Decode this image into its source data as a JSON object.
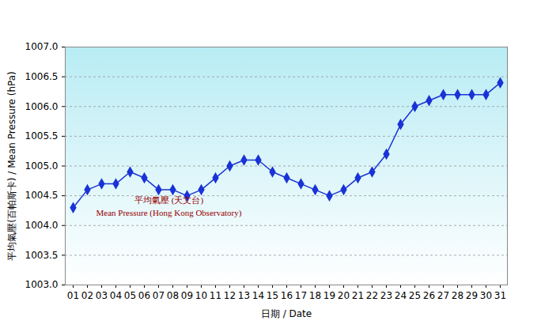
{
  "chart_data": {
    "type": "line",
    "x_label": "日期 / Date",
    "y_label": "平均氣壓(百帕斯卡) / Mean Pressure (hPa)",
    "annotations": [
      "平均氣壓 (天文台)",
      "Mean Pressure (Hong Kong Observatory)"
    ],
    "categories": [
      "01",
      "02",
      "03",
      "04",
      "05",
      "06",
      "07",
      "08",
      "09",
      "10",
      "11",
      "12",
      "13",
      "14",
      "15",
      "16",
      "17",
      "18",
      "19",
      "20",
      "21",
      "22",
      "23",
      "24",
      "25",
      "26",
      "27",
      "28",
      "29",
      "30",
      "31"
    ],
    "values": [
      1004.3,
      1004.6,
      1004.7,
      1004.7,
      1004.9,
      1004.8,
      1004.6,
      1004.6,
      1004.5,
      1004.6,
      1004.8,
      1005.0,
      1005.1,
      1005.1,
      1004.9,
      1004.8,
      1004.7,
      1004.6,
      1004.5,
      1004.6,
      1004.8,
      1004.9,
      1005.2,
      1005.7,
      1006.0,
      1006.1,
      1006.2,
      1006.2,
      1006.2,
      1006.2,
      1006.4
    ],
    "color": "#1a33d6",
    "marker": "diamond",
    "ylim": [
      1003.0,
      1007.0
    ],
    "yticks": [
      {
        "value": 1003,
        "label": "1003.0"
      },
      {
        "value": 1003.5,
        "label": "1003.5"
      },
      {
        "value": 1004,
        "label": "1004.0"
      },
      {
        "value": 1004.5,
        "label": "1004.5"
      },
      {
        "value": 1005,
        "label": "1005.0"
      },
      {
        "value": 1005.5,
        "label": "1005.5"
      },
      {
        "value": 1006,
        "label": "1006.0"
      },
      {
        "value": 1006.5,
        "label": "1006.5"
      },
      {
        "value": 1007,
        "label": "1007.0"
      }
    ],
    "grid": true
  }
}
